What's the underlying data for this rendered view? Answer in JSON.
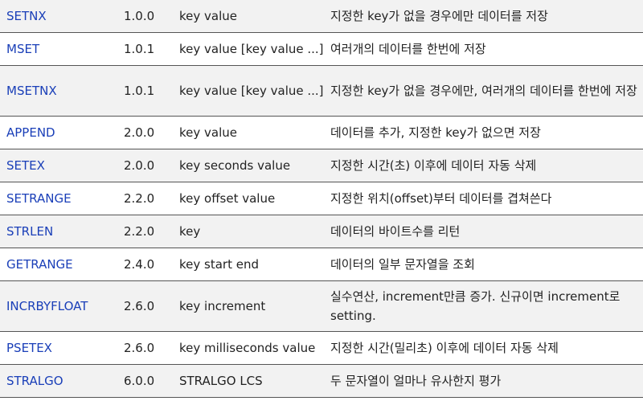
{
  "rows": [
    {
      "command": "SETNX",
      "version": "1.0.0",
      "args": "key value",
      "description": "지정한 key가 없을 경우에만 데이터를 저장"
    },
    {
      "command": "MSET",
      "version": "1.0.1",
      "args": "key value [key value ...]",
      "description": "여러개의 데이터를 한번에 저장"
    },
    {
      "command": "MSETNX",
      "version": "1.0.1",
      "args": "key value [key value ...]",
      "description": "지정한 key가 없을 경우에만, 여러개의 데이터를 한번에 저장"
    },
    {
      "command": "APPEND",
      "version": "2.0.0",
      "args": "key value",
      "description": "데이터를 추가, 지정한 key가 없으면 저장"
    },
    {
      "command": "SETEX",
      "version": "2.0.0",
      "args": "key seconds value",
      "description": "지정한 시간(초) 이후에 데이터 자동 삭제"
    },
    {
      "command": "SETRANGE",
      "version": "2.2.0",
      "args": "key offset value",
      "description": "지정한 위치(offset)부터 데이터를 겹쳐쓴다"
    },
    {
      "command": "STRLEN",
      "version": "2.2.0",
      "args": "key",
      "description": "데이터의 바이트수를 리턴"
    },
    {
      "command": "GETRANGE",
      "version": "2.4.0",
      "args": "key start end",
      "description": "데이터의 일부 문자열을 조회"
    },
    {
      "command": "INCRBYFLOAT",
      "version": "2.6.0",
      "args": "key increment",
      "description": "실수연산, increment만큼 증가. 신규이면 increment로 setting."
    },
    {
      "command": "PSETEX",
      "version": "2.6.0",
      "args": "key milliseconds value",
      "description": "지정한 시간(밀리초) 이후에 데이터 자동 삭제"
    },
    {
      "command": "STRALGO",
      "version": "6.0.0",
      "args": "STRALGO LCS",
      "description": "두 문자열이 얼마나 유사한지 평가"
    }
  ]
}
